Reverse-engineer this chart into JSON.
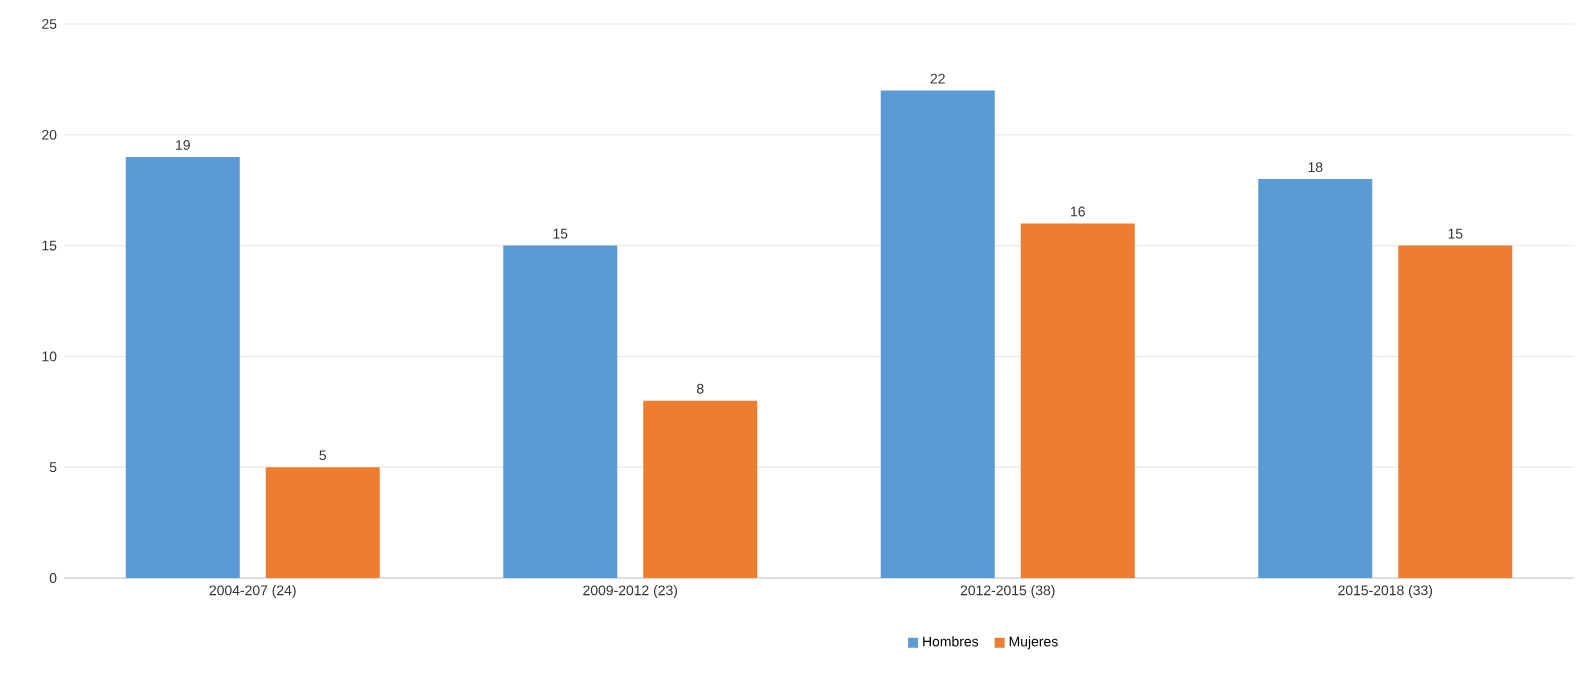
{
  "chart_data": {
    "type": "bar",
    "categories": [
      "2004-207 (24)",
      "2009-2012 (23)",
      "2012-2015 (38)",
      "2015-2018 (33)"
    ],
    "series": [
      {
        "name": "Hombres",
        "color": "#5b9bd5",
        "values": [
          19,
          15,
          22,
          18
        ]
      },
      {
        "name": "Mujeres",
        "color": "#ed7d31",
        "values": [
          5,
          8,
          16,
          15
        ]
      }
    ],
    "ylim": [
      0,
      25
    ],
    "yticks": [
      0,
      5,
      10,
      15,
      20,
      25
    ],
    "grid": "y",
    "legend": "bottom",
    "data_labels": true
  }
}
